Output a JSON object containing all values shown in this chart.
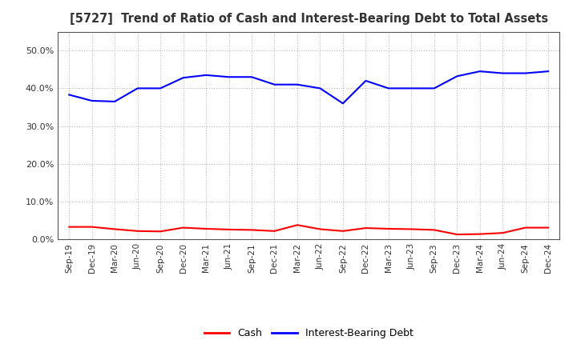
{
  "title": "[5727]  Trend of Ratio of Cash and Interest-Bearing Debt to Total Assets",
  "x_labels": [
    "Sep-19",
    "Dec-19",
    "Mar-20",
    "Jun-20",
    "Sep-20",
    "Dec-20",
    "Mar-21",
    "Jun-21",
    "Sep-21",
    "Dec-21",
    "Mar-22",
    "Jun-22",
    "Sep-22",
    "Dec-22",
    "Mar-23",
    "Jun-23",
    "Sep-23",
    "Dec-23",
    "Mar-24",
    "Jun-24",
    "Sep-24",
    "Dec-24"
  ],
  "cash": [
    0.033,
    0.033,
    0.027,
    0.022,
    0.021,
    0.031,
    0.028,
    0.026,
    0.025,
    0.022,
    0.038,
    0.027,
    0.022,
    0.03,
    0.028,
    0.027,
    0.025,
    0.013,
    0.014,
    0.017,
    0.031,
    0.031
  ],
  "debt": [
    0.383,
    0.367,
    0.365,
    0.4,
    0.4,
    0.428,
    0.435,
    0.43,
    0.43,
    0.41,
    0.41,
    0.4,
    0.36,
    0.42,
    0.4,
    0.4,
    0.4,
    0.432,
    0.445,
    0.44,
    0.44,
    0.445
  ],
  "cash_color": "#ff0000",
  "debt_color": "#0000ff",
  "ylim": [
    0.0,
    0.55
  ],
  "yticks": [
    0.0,
    0.1,
    0.2,
    0.3,
    0.4,
    0.5
  ],
  "background_color": "#ffffff",
  "grid_color": "#aaaaaa",
  "title_color": "#333333",
  "legend_cash": "Cash",
  "legend_debt": "Interest-Bearing Debt"
}
